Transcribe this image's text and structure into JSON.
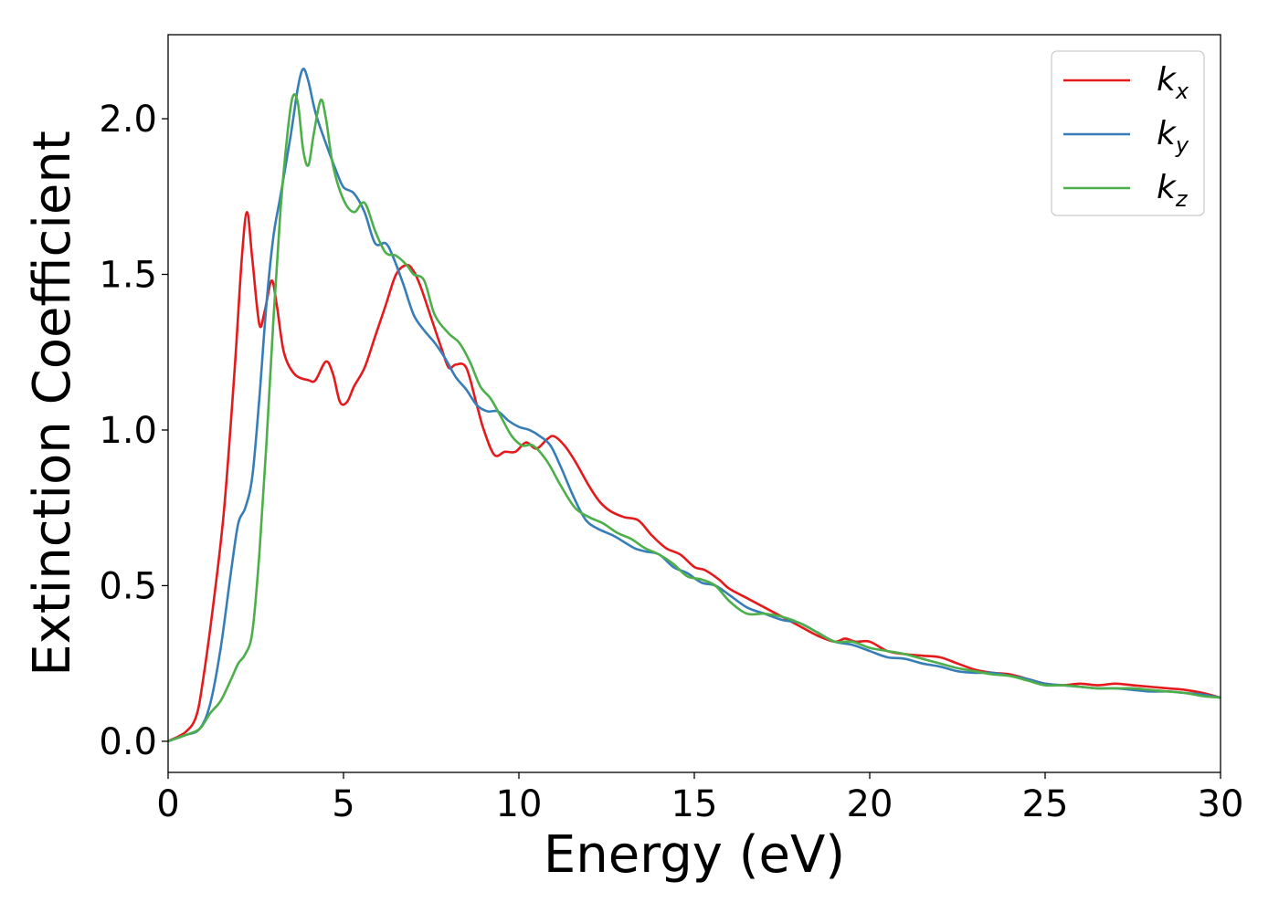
{
  "chart_data": {
    "type": "line",
    "title": "",
    "xlabel": "Energy (eV)",
    "ylabel": "Extinction Coefficient",
    "xlim": [
      0,
      30
    ],
    "ylim": [
      -0.1,
      2.27
    ],
    "grid": false,
    "legend_position": "top-right",
    "x_ticks": [
      0,
      5,
      10,
      15,
      20,
      25,
      30
    ],
    "x_tick_labels": [
      "0",
      "5",
      "10",
      "15",
      "20",
      "25",
      "30"
    ],
    "y_ticks": [
      0.0,
      0.5,
      1.0,
      1.5,
      2.0
    ],
    "y_tick_labels": [
      "0.0",
      "0.5",
      "1.0",
      "1.5",
      "2.0"
    ],
    "series": [
      {
        "name": "kx",
        "legend_main": "k",
        "legend_sub": "x",
        "color": "#e41a1c",
        "x": [
          0,
          0.5,
          0.8,
          1.0,
          1.3,
          1.6,
          1.9,
          2.1,
          2.25,
          2.4,
          2.6,
          2.75,
          2.95,
          3.1,
          3.3,
          3.6,
          4.0,
          4.2,
          4.5,
          4.7,
          4.9,
          5.1,
          5.3,
          5.6,
          5.9,
          6.2,
          6.5,
          6.8,
          7.0,
          7.2,
          7.5,
          7.8,
          8.0,
          8.2,
          8.5,
          8.8,
          9.0,
          9.3,
          9.6,
          9.9,
          10.2,
          10.5,
          10.8,
          11.0,
          11.3,
          11.6,
          12.0,
          12.3,
          12.6,
          13.0,
          13.4,
          13.8,
          14.2,
          14.6,
          15.0,
          15.3,
          15.7,
          16.0,
          16.5,
          17.0,
          17.5,
          18.0,
          18.5,
          19.0,
          19.3,
          19.6,
          20.0,
          20.5,
          21.0,
          21.5,
          22.0,
          22.5,
          23.0,
          23.5,
          24.0,
          24.5,
          25.0,
          25.5,
          26.0,
          26.5,
          27.0,
          27.5,
          28.0,
          28.5,
          29.0,
          29.5,
          30.0
        ],
        "y": [
          0.0,
          0.03,
          0.08,
          0.2,
          0.45,
          0.75,
          1.2,
          1.55,
          1.7,
          1.55,
          1.34,
          1.38,
          1.48,
          1.4,
          1.25,
          1.18,
          1.16,
          1.16,
          1.22,
          1.18,
          1.09,
          1.09,
          1.14,
          1.2,
          1.3,
          1.4,
          1.5,
          1.53,
          1.51,
          1.46,
          1.36,
          1.26,
          1.2,
          1.21,
          1.2,
          1.08,
          1.0,
          0.92,
          0.93,
          0.93,
          0.96,
          0.94,
          0.97,
          0.98,
          0.95,
          0.9,
          0.82,
          0.77,
          0.74,
          0.72,
          0.71,
          0.66,
          0.62,
          0.6,
          0.56,
          0.55,
          0.52,
          0.49,
          0.46,
          0.43,
          0.4,
          0.37,
          0.34,
          0.32,
          0.33,
          0.32,
          0.32,
          0.29,
          0.28,
          0.275,
          0.27,
          0.25,
          0.23,
          0.22,
          0.215,
          0.2,
          0.185,
          0.18,
          0.185,
          0.18,
          0.185,
          0.18,
          0.175,
          0.17,
          0.165,
          0.155,
          0.14
        ]
      },
      {
        "name": "ky",
        "legend_main": "k",
        "legend_sub": "y",
        "color": "#377eb8",
        "x": [
          0,
          0.5,
          0.9,
          1.2,
          1.5,
          1.8,
          2.0,
          2.2,
          2.4,
          2.6,
          2.8,
          3.0,
          3.2,
          3.5,
          3.7,
          3.85,
          4.0,
          4.2,
          4.5,
          4.8,
          5.0,
          5.3,
          5.6,
          5.9,
          6.2,
          6.4,
          6.7,
          7.0,
          7.3,
          7.6,
          7.9,
          8.2,
          8.5,
          8.8,
          9.1,
          9.4,
          9.7,
          10.0,
          10.3,
          10.6,
          10.9,
          11.2,
          11.5,
          11.8,
          12.0,
          12.3,
          12.7,
          13.0,
          13.3,
          13.6,
          14.0,
          14.4,
          14.8,
          15.2,
          15.6,
          16.0,
          16.5,
          17.0,
          17.5,
          18.0,
          18.5,
          19.0,
          19.5,
          20.0,
          20.5,
          21.0,
          21.5,
          22.0,
          22.5,
          23.0,
          23.5,
          24.0,
          24.5,
          25.0,
          25.5,
          26.0,
          26.5,
          27.0,
          27.5,
          28.0,
          28.5,
          29.0,
          29.5,
          30.0
        ],
        "y": [
          0.0,
          0.02,
          0.04,
          0.12,
          0.3,
          0.55,
          0.7,
          0.75,
          0.85,
          1.1,
          1.4,
          1.62,
          1.75,
          1.95,
          2.1,
          2.16,
          2.12,
          2.02,
          1.92,
          1.83,
          1.78,
          1.76,
          1.7,
          1.6,
          1.6,
          1.56,
          1.47,
          1.37,
          1.32,
          1.28,
          1.23,
          1.17,
          1.13,
          1.08,
          1.06,
          1.06,
          1.03,
          1.01,
          1.0,
          0.98,
          0.95,
          0.88,
          0.8,
          0.73,
          0.7,
          0.68,
          0.66,
          0.64,
          0.62,
          0.61,
          0.6,
          0.56,
          0.54,
          0.51,
          0.5,
          0.47,
          0.43,
          0.41,
          0.39,
          0.38,
          0.35,
          0.32,
          0.31,
          0.29,
          0.27,
          0.265,
          0.25,
          0.24,
          0.225,
          0.22,
          0.22,
          0.21,
          0.2,
          0.185,
          0.18,
          0.175,
          0.17,
          0.17,
          0.165,
          0.16,
          0.16,
          0.155,
          0.15,
          0.14
        ]
      },
      {
        "name": "kz",
        "legend_main": "k",
        "legend_sub": "z",
        "color": "#4daf4a",
        "x": [
          0,
          0.5,
          0.9,
          1.2,
          1.5,
          1.8,
          2.0,
          2.2,
          2.4,
          2.6,
          2.8,
          3.0,
          3.2,
          3.4,
          3.55,
          3.7,
          3.85,
          4.0,
          4.15,
          4.35,
          4.5,
          4.7,
          5.0,
          5.3,
          5.6,
          5.9,
          6.2,
          6.5,
          6.8,
          7.0,
          7.3,
          7.6,
          8.0,
          8.3,
          8.6,
          8.9,
          9.2,
          9.5,
          9.8,
          10.1,
          10.4,
          10.8,
          11.2,
          11.6,
          12.0,
          12.4,
          12.8,
          13.2,
          13.6,
          14.0,
          14.4,
          14.8,
          15.2,
          15.6,
          16.0,
          16.5,
          17.0,
          17.5,
          18.0,
          18.5,
          19.0,
          19.5,
          20.0,
          20.5,
          21.0,
          21.5,
          22.0,
          22.5,
          23.0,
          23.5,
          24.0,
          24.5,
          25.0,
          25.5,
          26.0,
          26.5,
          27.0,
          27.5,
          28.0,
          28.5,
          29.0,
          29.5,
          30.0
        ],
        "y": [
          0.0,
          0.02,
          0.04,
          0.09,
          0.13,
          0.2,
          0.25,
          0.28,
          0.35,
          0.6,
          0.95,
          1.35,
          1.7,
          1.95,
          2.07,
          2.05,
          1.9,
          1.85,
          1.95,
          2.06,
          2.0,
          1.85,
          1.74,
          1.7,
          1.73,
          1.64,
          1.57,
          1.56,
          1.53,
          1.5,
          1.48,
          1.37,
          1.31,
          1.28,
          1.22,
          1.14,
          1.1,
          1.04,
          0.98,
          0.95,
          0.95,
          0.9,
          0.82,
          0.75,
          0.72,
          0.7,
          0.67,
          0.65,
          0.62,
          0.6,
          0.57,
          0.53,
          0.52,
          0.5,
          0.45,
          0.41,
          0.41,
          0.4,
          0.38,
          0.35,
          0.32,
          0.32,
          0.3,
          0.29,
          0.28,
          0.265,
          0.25,
          0.235,
          0.225,
          0.215,
          0.21,
          0.195,
          0.18,
          0.18,
          0.175,
          0.17,
          0.17,
          0.17,
          0.165,
          0.16,
          0.155,
          0.145,
          0.14
        ]
      }
    ]
  }
}
